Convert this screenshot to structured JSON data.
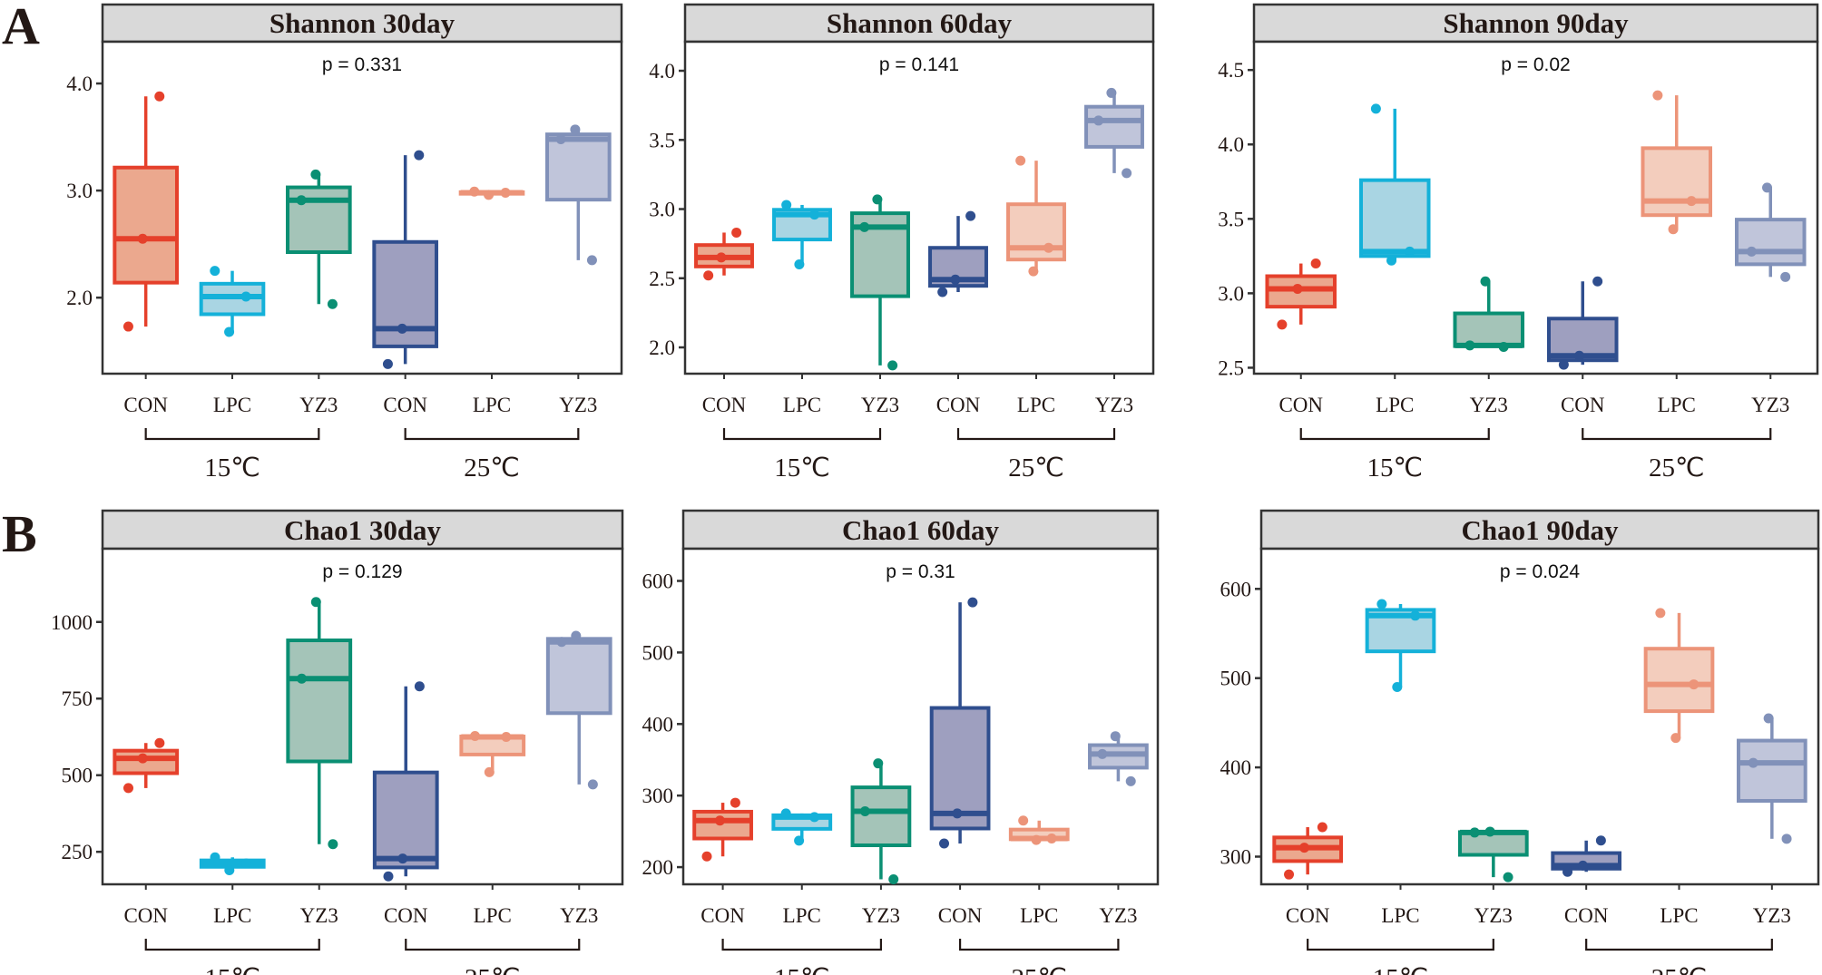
{
  "figure": {
    "panel_letters": [
      "A",
      "B"
    ],
    "categories": [
      "CON",
      "LPC",
      "YZ3",
      "CON",
      "LPC",
      "YZ3"
    ],
    "temperature_groups": [
      {
        "label": "15℃",
        "members": [
          "CON",
          "LPC",
          "YZ3"
        ]
      },
      {
        "label": "25℃",
        "members": [
          "CON",
          "LPC",
          "YZ3"
        ]
      }
    ],
    "strip_background": "#d9d9d9",
    "colors": [
      {
        "line": "#e5402b",
        "fill": "#eba88e"
      },
      {
        "line": "#14b1d9",
        "fill": "#a9d5e3"
      },
      {
        "line": "#0a8f73",
        "fill": "#a4c4b8"
      },
      {
        "line": "#2f4e8e",
        "fill": "#9e9fbf"
      },
      {
        "line": "#ec9479",
        "fill": "#f3cdbd"
      },
      {
        "line": "#8191b9",
        "fill": "#c0c5da"
      }
    ]
  },
  "chart_data": [
    {
      "type": "box",
      "title": "Shannon 30day",
      "p_label": "p = 0.331",
      "ylim": [
        1.29,
        4.39
      ],
      "yticks": [
        "2.0",
        "3.0",
        "4.0"
      ],
      "grid": false,
      "series": [
        [
          1.73,
          2.55,
          3.88
        ],
        [
          1.68,
          2.01,
          2.25
        ],
        [
          1.94,
          2.91,
          3.15
        ],
        [
          1.38,
          1.71,
          3.33
        ],
        [
          2.96,
          2.98,
          2.99
        ],
        [
          2.35,
          3.48,
          3.57
        ]
      ]
    },
    {
      "type": "box",
      "title": "Shannon 60day",
      "p_label": "p = 0.141",
      "ylim": [
        1.81,
        4.21
      ],
      "yticks": [
        "2.0",
        "2.5",
        "3.0",
        "3.5",
        "4.0"
      ],
      "grid": false,
      "series": [
        [
          2.52,
          2.65,
          2.83
        ],
        [
          2.6,
          2.96,
          3.03
        ],
        [
          1.87,
          2.87,
          3.07
        ],
        [
          2.4,
          2.49,
          2.95
        ],
        [
          2.55,
          2.72,
          3.35
        ],
        [
          3.26,
          3.64,
          3.84
        ]
      ]
    },
    {
      "type": "box",
      "title": "Shannon 90day",
      "p_label": "p = 0.02",
      "ylim": [
        2.46,
        4.69
      ],
      "yticks": [
        "2.5",
        "3.0",
        "3.5",
        "4.0",
        "4.5"
      ],
      "grid": false,
      "series": [
        [
          2.79,
          3.03,
          3.2
        ],
        [
          3.22,
          3.28,
          4.24
        ],
        [
          2.64,
          2.65,
          3.08
        ],
        [
          2.52,
          2.58,
          3.08
        ],
        [
          3.43,
          3.62,
          4.33
        ],
        [
          3.11,
          3.28,
          3.71
        ]
      ]
    },
    {
      "type": "box",
      "title": "Chao1 30day",
      "p_label": "p = 0.129",
      "ylim": [
        144,
        1239
      ],
      "yticks": [
        "250",
        "500",
        "750",
        "1000"
      ],
      "grid": false,
      "series": [
        [
          458,
          555,
          605
        ],
        [
          190,
          212,
          232
        ],
        [
          275,
          815,
          1065
        ],
        [
          170,
          228,
          790
        ],
        [
          510,
          625,
          628
        ],
        [
          470,
          935,
          955
        ]
      ]
    },
    {
      "type": "box",
      "title": "Chao1 60day",
      "p_label": "p = 0.31",
      "ylim": [
        176,
        645
      ],
      "yticks": [
        "200",
        "300",
        "400",
        "500",
        "600"
      ],
      "grid": false,
      "series": [
        [
          215,
          265,
          290
        ],
        [
          237,
          270,
          275
        ],
        [
          183,
          278,
          345
        ],
        [
          233,
          275,
          570
        ],
        [
          238,
          240,
          265
        ],
        [
          320,
          358,
          383
        ]
      ]
    },
    {
      "type": "box",
      "title": "Chao1 90day",
      "p_label": "p = 0.024",
      "ylim": [
        269,
        645
      ],
      "yticks": [
        "300",
        "400",
        "500",
        "600"
      ],
      "grid": false,
      "series": [
        [
          280,
          310,
          333
        ],
        [
          490,
          570,
          583
        ],
        [
          277,
          327,
          328
        ],
        [
          283,
          290,
          318
        ],
        [
          433,
          493,
          573
        ],
        [
          320,
          405,
          455
        ]
      ]
    }
  ]
}
